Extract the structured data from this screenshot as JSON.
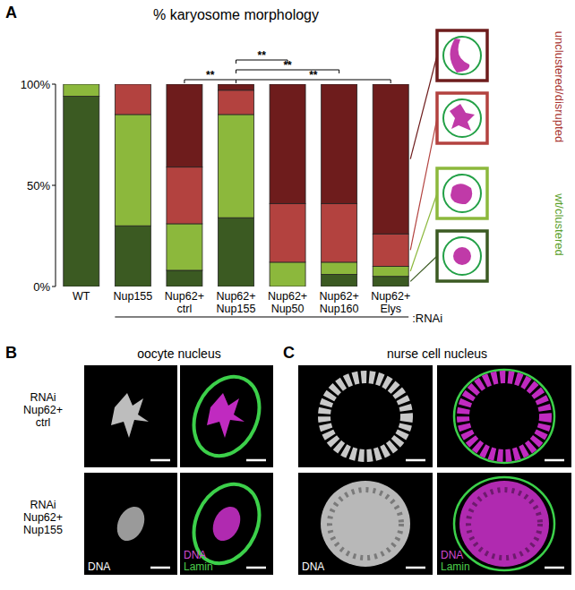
{
  "chart_data": {
    "type": "bar",
    "stacked": true,
    "title": "% karyosome morphology",
    "categories": [
      "WT",
      "Nup155",
      "Nup62+\nctrl",
      "Nup62+\nNup155",
      "Nup62+\nNup50",
      "Nup62+\nNup160",
      "Nup62+\nElys"
    ],
    "series": [
      {
        "color": "#3b5a22",
        "values": [
          94,
          30,
          8,
          34,
          0,
          6,
          5
        ]
      },
      {
        "color": "#8cb83c",
        "values": [
          6,
          55,
          23,
          51,
          12,
          6,
          5
        ]
      },
      {
        "color": "#b3423f",
        "values": [
          0,
          15,
          28,
          12,
          29,
          29,
          16
        ]
      },
      {
        "color": "#6e1c1c",
        "values": [
          0,
          0,
          41,
          3,
          59,
          59,
          74
        ]
      }
    ],
    "ylim": [
      0,
      100
    ],
    "yticks": [
      {
        "value": 0,
        "label": "0%"
      },
      {
        "value": 50,
        "label": "50%"
      },
      {
        "value": 100,
        "label": "100%"
      }
    ],
    "annotations": [
      {
        "text": "**",
        "from": "Nup62+\nctrl",
        "to": "Nup62+\nNup155"
      },
      {
        "text": "**",
        "from": "Nup62+\nNup155",
        "to": "Nup62+\nElys"
      },
      {
        "text": "**",
        "from": "Nup62+\nNup155",
        "to": "Nup62+\nNup160"
      },
      {
        "text": "**",
        "from": "Nup62+\nNup155",
        "to": "Nup62+\nNup50"
      }
    ],
    "group_label": {
      "text": ":RNAi",
      "from": "Nup155",
      "to": "Nup62+\nElys"
    },
    "legend_groups": [
      {
        "label": "unclustered/disrupted",
        "color": "#a8342f"
      },
      {
        "label": "wt/clustered",
        "color": "#5aa02a"
      }
    ]
  },
  "panels": {
    "A": {
      "label": "A"
    },
    "B": {
      "label": "B",
      "title": "oocyte nucleus",
      "rows": [
        "RNAi\nNup62+\nctrl",
        "RNAi\nNup62+\nNup155"
      ],
      "channel": "DNA",
      "merge_channels": [
        "DNA",
        "Lamin"
      ]
    },
    "C": {
      "label": "C",
      "title": "nurse cell nucleus",
      "channel": "DNA",
      "merge_channels": [
        "DNA",
        "Lamin"
      ]
    }
  }
}
